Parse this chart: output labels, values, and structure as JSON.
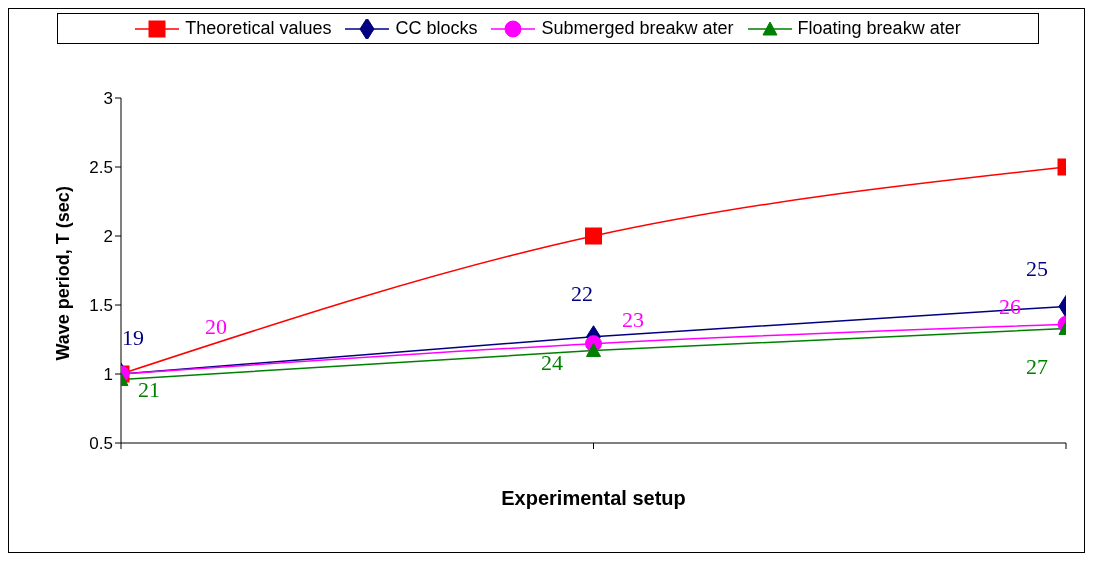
{
  "chart_data": {
    "type": "line",
    "xlabel": "Experimental setup",
    "ylabel": "Wave period, T (sec)",
    "categories": [
      null,
      null,
      null
    ],
    "series": [
      {
        "name": "Theoretical values",
        "color": "#ff0000",
        "marker": "square",
        "values": [
          1,
          2,
          2.5
        ]
      },
      {
        "name": "CC blocks",
        "color": "#000080",
        "marker": "diamond",
        "values": [
          1.0,
          1.27,
          1.49
        ]
      },
      {
        "name": "Submerged breakw ater",
        "color": "#ff00ff",
        "marker": "circle",
        "values": [
          1.0,
          1.22,
          1.36
        ]
      },
      {
        "name": "Floating breakw ater",
        "color": "#008000",
        "marker": "triangle",
        "values": [
          0.96,
          1.17,
          1.33
        ]
      }
    ],
    "ylim": [
      0.5,
      3
    ],
    "yticks": [
      0.5,
      1,
      1.5,
      2,
      2.5,
      3
    ],
    "grid": false,
    "legend": "top",
    "annotations": [
      "19",
      "20",
      "21",
      "22",
      "23",
      "24",
      "25",
      "26",
      "27"
    ]
  }
}
